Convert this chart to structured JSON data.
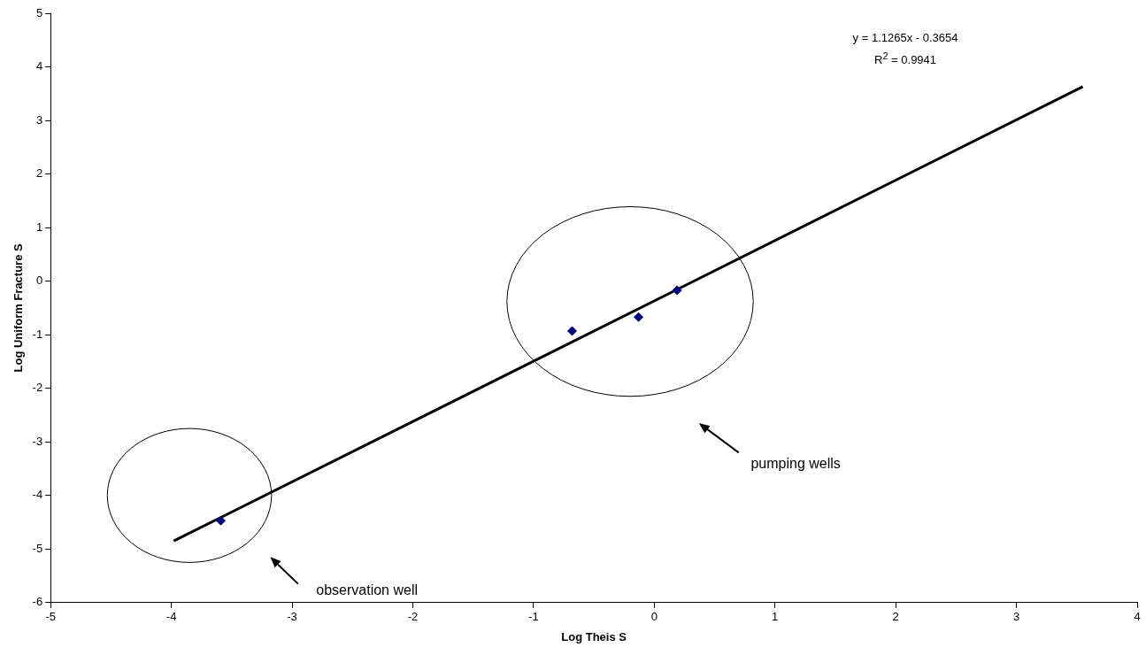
{
  "chart_data": {
    "type": "scatter",
    "xlabel": "Log Theis S",
    "ylabel": "Log Uniform Fracture S",
    "xlim": [
      -5,
      4
    ],
    "xticks": [
      -5,
      -4,
      -3,
      -2,
      -1,
      0,
      1,
      2,
      3,
      4
    ],
    "ylim": [
      -6,
      5
    ],
    "yticks": [
      -6,
      -5,
      -4,
      -3,
      -2,
      -1,
      0,
      1,
      2,
      3,
      4,
      5
    ],
    "grid": false,
    "legend": false,
    "series": [
      {
        "type": "scatter",
        "marker": "diamond",
        "color": "#000080",
        "x": [
          -3.59,
          -0.68,
          -0.13,
          0.19
        ],
        "values": [
          -4.47,
          -0.93,
          -0.67,
          -0.17
        ]
      },
      {
        "type": "line",
        "marker": "none",
        "color": "#000000",
        "x": [
          -3.98,
          3.55
        ],
        "values": [
          -4.85,
          3.63
        ]
      }
    ],
    "annotations": [
      "y = 1.1265x - 0.3654\nR$^{2}$ = 0.9941",
      "observation well",
      "pumping wells"
    ]
  }
}
